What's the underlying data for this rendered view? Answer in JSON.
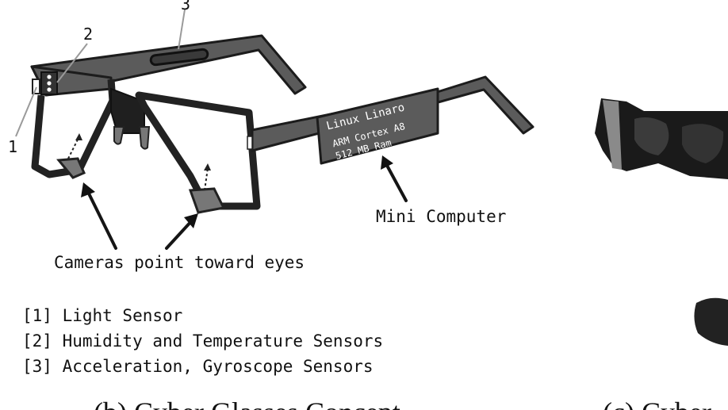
{
  "callouts": {
    "n1": "1",
    "n2": "2",
    "n3": "3"
  },
  "arm_label": {
    "line1": "Linux Linaro",
    "line2": "ARM Cortex A8",
    "line3": "512 MB Ram"
  },
  "annotations": {
    "mini_computer": "Mini Computer",
    "cameras": "Cameras point toward eyes"
  },
  "legend": [
    {
      "text": "[1] Light Sensor"
    },
    {
      "text": "[2] Humidity and Temperature Sensors"
    },
    {
      "text": "[3] Acceleration, Gyroscope Sensors"
    }
  ],
  "captions": {
    "left": "(b) Cyber Glasses Concept",
    "right": "(c) Cyber"
  },
  "colors": {
    "frame": "#5b5b5b",
    "outline": "#1c1c1c",
    "leader": "#9a9a9a"
  }
}
